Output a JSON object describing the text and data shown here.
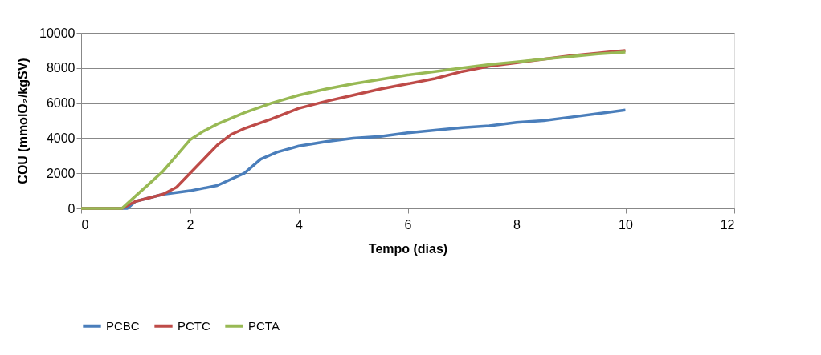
{
  "chart_data": {
    "type": "line",
    "xlabel": "Tempo (dias)",
    "ylabel": "COU (mmolO₂/kgSV)",
    "xlim": [
      0,
      12
    ],
    "xticks": [
      0,
      2,
      4,
      6,
      8,
      10,
      12
    ],
    "ylim": [
      0,
      10000
    ],
    "yticks": [
      0,
      2000,
      4000,
      6000,
      8000,
      10000
    ],
    "grid": "y",
    "legend": "bottom",
    "marker": "none",
    "line_style": "solid",
    "series": [
      {
        "name": "PCBC",
        "color": "#4a7ebb",
        "x": [
          0,
          0.5,
          0.85,
          1.0,
          1.5,
          2.0,
          2.5,
          3.0,
          3.3,
          3.6,
          4.0,
          4.5,
          5.0,
          5.5,
          6.0,
          6.5,
          7.0,
          7.5,
          8.0,
          8.5,
          9.0,
          9.5,
          10.0
        ],
        "values": [
          0,
          0,
          0,
          400,
          800,
          1000,
          1300,
          2000,
          2800,
          3200,
          3550,
          3800,
          4000,
          4100,
          4300,
          4450,
          4600,
          4700,
          4900,
          5000,
          5200,
          5400,
          5600
        ]
      },
      {
        "name": "PCTC",
        "color": "#be4b48",
        "x": [
          0,
          0.5,
          0.75,
          1.0,
          1.5,
          1.75,
          2.0,
          2.25,
          2.5,
          2.75,
          3.0,
          3.5,
          4.0,
          4.5,
          5.0,
          5.5,
          6.0,
          6.5,
          7.0,
          7.5,
          8.0,
          8.5,
          9.0,
          9.5,
          10.0
        ],
        "values": [
          0,
          0,
          0,
          400,
          800,
          1200,
          2000,
          2800,
          3600,
          4200,
          4550,
          5100,
          5700,
          6100,
          6450,
          6800,
          7100,
          7400,
          7800,
          8100,
          8300,
          8500,
          8700,
          8850,
          9000
        ]
      },
      {
        "name": "PCTA",
        "color": "#98b954",
        "x": [
          0,
          0.5,
          0.75,
          1.0,
          1.25,
          1.5,
          1.75,
          2.0,
          2.25,
          2.5,
          3.0,
          3.5,
          4.0,
          4.5,
          5.0,
          5.5,
          6.0,
          6.5,
          7.0,
          7.5,
          8.0,
          8.5,
          9.0,
          9.5,
          10.0
        ],
        "values": [
          0,
          0,
          0,
          700,
          1400,
          2100,
          3000,
          3900,
          4400,
          4800,
          5450,
          6000,
          6450,
          6800,
          7100,
          7350,
          7600,
          7800,
          8000,
          8200,
          8350,
          8500,
          8650,
          8800,
          8900
        ]
      }
    ]
  }
}
